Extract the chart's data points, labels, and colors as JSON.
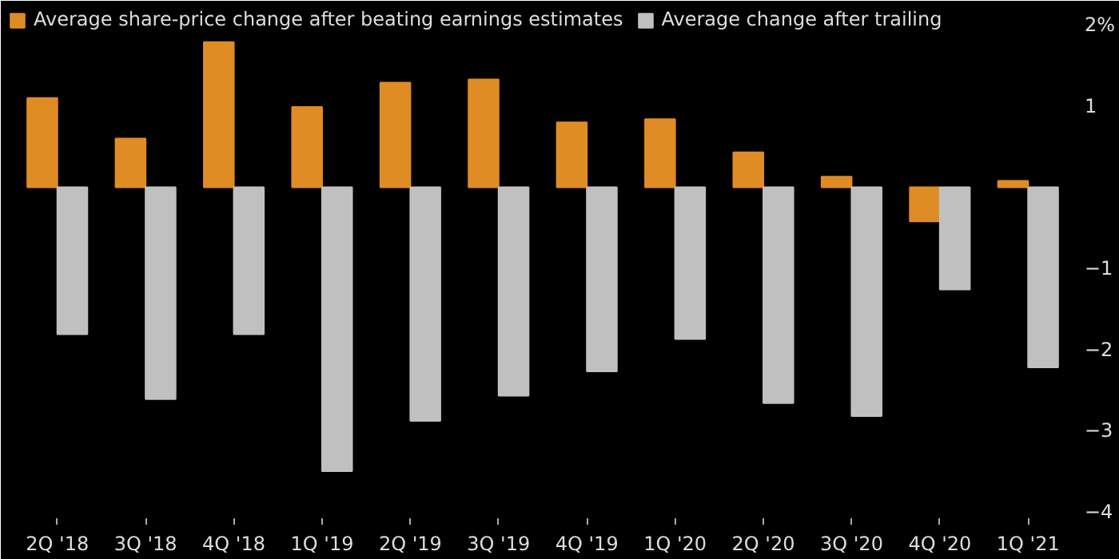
{
  "chart_data": {
    "type": "bar",
    "categories": [
      "2Q '18",
      "3Q '18",
      "4Q '18",
      "1Q '19",
      "2Q '19",
      "3Q '19",
      "4Q '19",
      "1Q '20",
      "2Q '20",
      "3Q '20",
      "4Q '20",
      "1Q '21"
    ],
    "series": [
      {
        "name": "Average share-price change after beating earnings estimates",
        "color": "#e08c24",
        "values": [
          1.1,
          0.6,
          1.79,
          0.99,
          1.29,
          1.33,
          0.8,
          0.84,
          0.43,
          0.13,
          -0.42,
          0.08
        ]
      },
      {
        "name": "Average change after trailing",
        "color": "#c0c0c0",
        "values": [
          -1.81,
          -2.61,
          -1.81,
          -3.5,
          -2.88,
          -2.57,
          -2.27,
          -1.87,
          -2.66,
          -2.82,
          -1.26,
          -2.22
        ]
      }
    ],
    "ylim": [
      -4.08,
      2.2
    ],
    "yticks": [
      {
        "value": 2,
        "label": "2%"
      },
      1,
      -1,
      -2,
      -3,
      -4
    ],
    "grid": false,
    "legend": "top left"
  }
}
